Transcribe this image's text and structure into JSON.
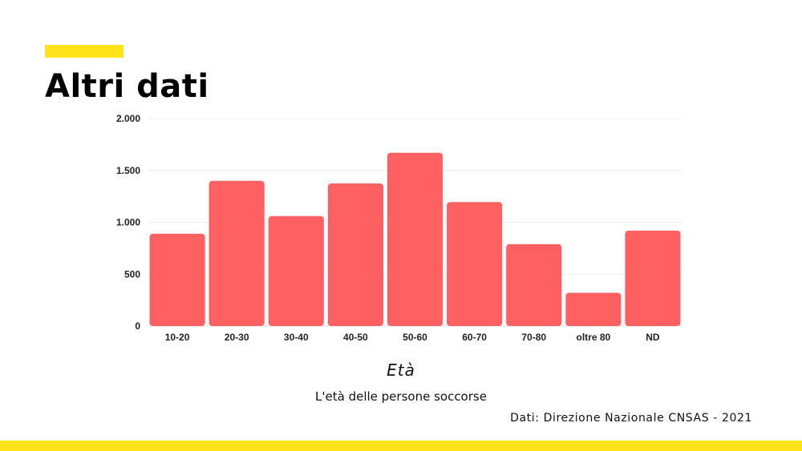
{
  "header": {
    "title": "Altri dati"
  },
  "colors": {
    "accent": "#fde21c",
    "bar": "#ff6163",
    "grid": "#eeeeee"
  },
  "chart_data": {
    "type": "bar",
    "categories": [
      "10-20",
      "20-30",
      "30-40",
      "40-50",
      "50-60",
      "60-70",
      "70-80",
      "oltre 80",
      "ND"
    ],
    "values": [
      890,
      1400,
      1060,
      1375,
      1670,
      1195,
      790,
      320,
      920
    ],
    "ylim": [
      0,
      2000
    ],
    "yticks": [
      0,
      500,
      1000,
      1500,
      2000
    ],
    "ytick_labels": [
      "0",
      "500",
      "1.000",
      "1.500",
      "2.000"
    ],
    "grid": true,
    "legend": "none",
    "xlabel": "Età",
    "caption": "L'età delle persone soccorse"
  },
  "source": "Dati: Direzione Nazionale CNSAS - 2021"
}
